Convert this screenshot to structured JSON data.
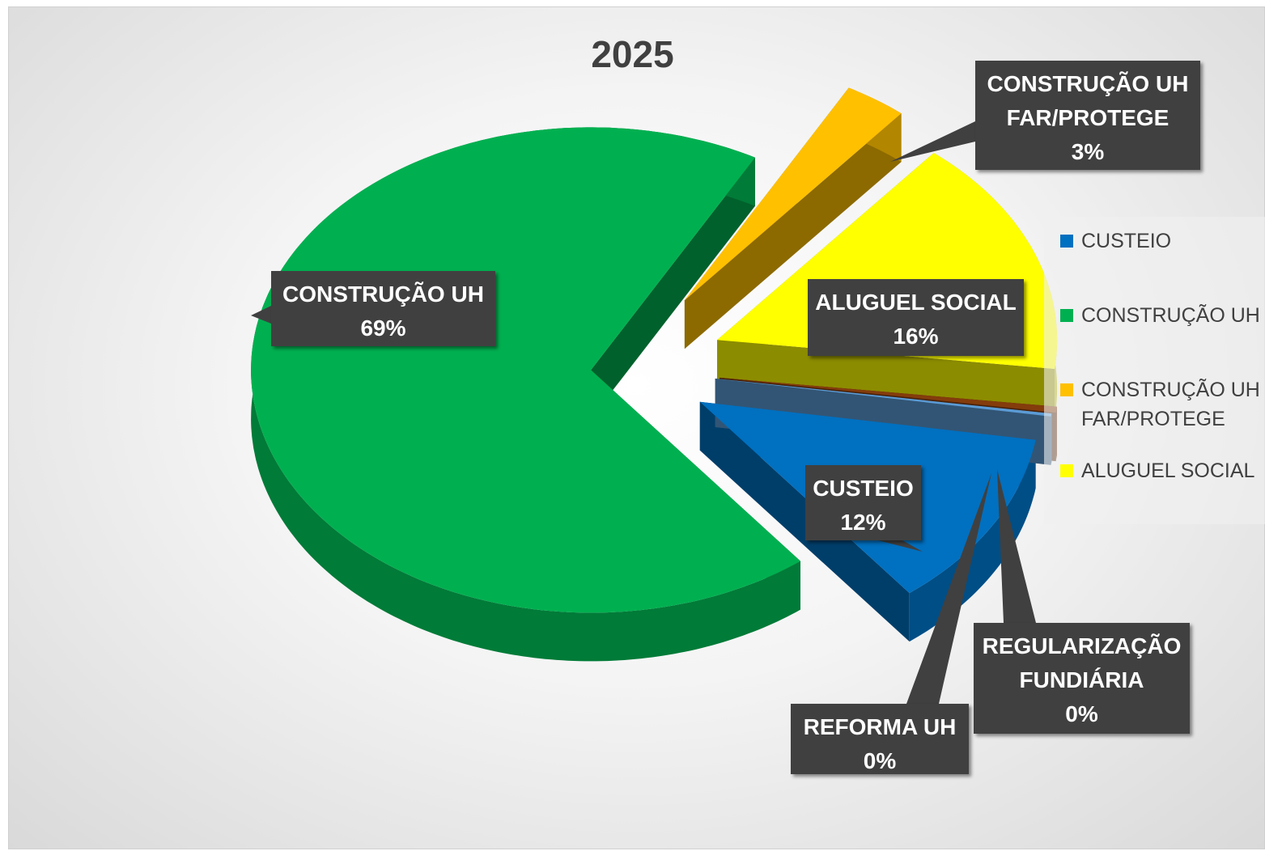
{
  "chart_data": {
    "type": "pie",
    "title": "2025",
    "categories": [
      "CUSTEIO",
      "CONSTRUÇÃO UH",
      "CONSTRUÇÃO UH FAR/PROTEGE",
      "ALUGUEL SOCIAL",
      "REGULARIZAÇÃO FUNDIÁRIA",
      "REFORMA UH"
    ],
    "values": [
      12,
      69,
      3,
      16,
      0.4,
      0.2
    ],
    "value_labels": [
      "12%",
      "69%",
      "3%",
      "16%",
      "0%",
      "0%"
    ],
    "colors": [
      "#0070c0",
      "#00b050",
      "#ffc000",
      "#ffff00",
      "#843c0c",
      "#5b9bd5"
    ],
    "legend": "right"
  }
}
